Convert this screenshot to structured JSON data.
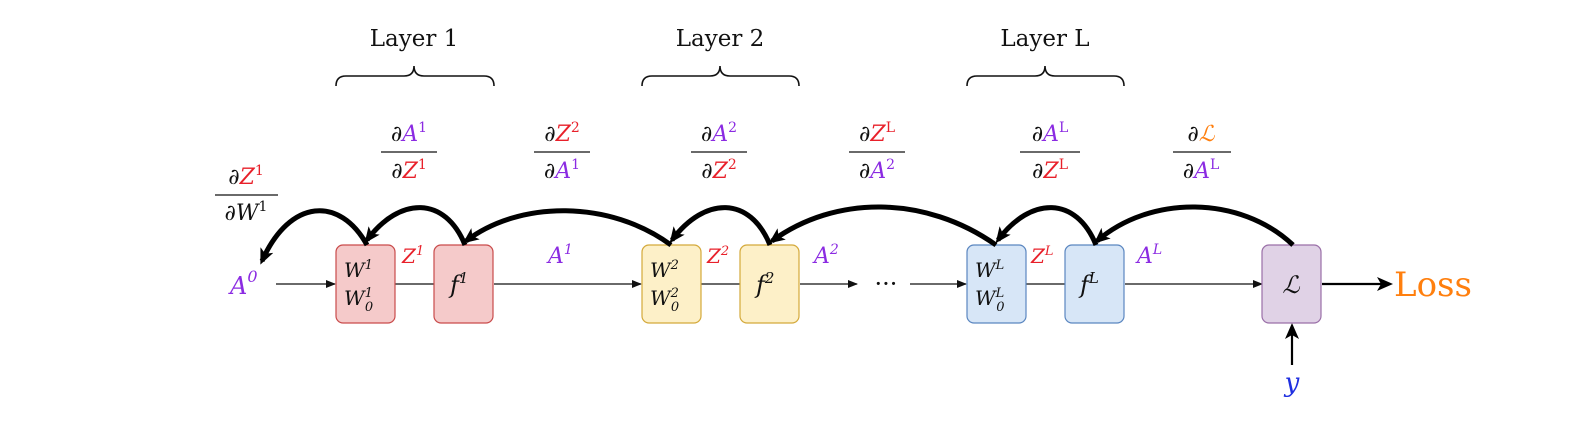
{
  "layer_labels": [
    "Layer 1",
    "Layer 2",
    "Layer L"
  ],
  "input": {
    "base": "A",
    "sup": "0"
  },
  "ellipsis": "···",
  "loss_label": "Loss",
  "target": "y",
  "colors": {
    "activation": "#8b2be2",
    "preactivation": "#e8202a",
    "loss": "#ff7f0e",
    "target": "#1f2fe0",
    "layer1_fill": "#f5caca",
    "layer1_stroke": "#c94b4b",
    "layer2_fill": "#fdf0c8",
    "layer2_stroke": "#d4a93a",
    "layerL_fill": "#d7e6f7",
    "layerL_stroke": "#5a86c0",
    "loss_fill": "#e0d2e6",
    "loss_stroke": "#9a6fa8"
  },
  "weight_boxes": [
    {
      "w": "W",
      "w0": "W",
      "sup": "1",
      "sub0": "0"
    },
    {
      "w": "W",
      "w0": "W",
      "sup": "2",
      "sub0": "0"
    },
    {
      "w": "W",
      "w0": "W",
      "sup": "L",
      "sub0": "0"
    }
  ],
  "activation_boxes": [
    {
      "base": "f",
      "sup": "1"
    },
    {
      "base": "f",
      "sup": "2"
    },
    {
      "base": "f",
      "sup": "L"
    }
  ],
  "loss_box": "ℒ",
  "z_labels": [
    {
      "base": "Z",
      "sup": "1"
    },
    {
      "base": "Z",
      "sup": "2"
    },
    {
      "base": "Z",
      "sup": "L"
    }
  ],
  "a_labels": [
    {
      "base": "A",
      "sup": "1"
    },
    {
      "base": "A",
      "sup": "2"
    },
    {
      "base": "A",
      "sup": "L"
    }
  ],
  "partial_symbol": "∂",
  "derivatives": [
    {
      "num": "Z",
      "num_sup": "1",
      "den": "W",
      "den_sup": "1"
    },
    {
      "num": "A",
      "num_sup": "1",
      "den": "Z",
      "den_sup": "1"
    },
    {
      "num": "Z",
      "num_sup": "2",
      "den": "A",
      "den_sup": "1"
    },
    {
      "num": "A",
      "num_sup": "2",
      "den": "Z",
      "den_sup": "2"
    },
    {
      "num": "Z",
      "num_sup": "L",
      "den": "A",
      "den_sup": "2"
    },
    {
      "num": "A",
      "num_sup": "L",
      "den": "Z",
      "den_sup": "L"
    },
    {
      "num": "ℒ",
      "num_sup": "",
      "den": "A",
      "den_sup": "L"
    }
  ]
}
